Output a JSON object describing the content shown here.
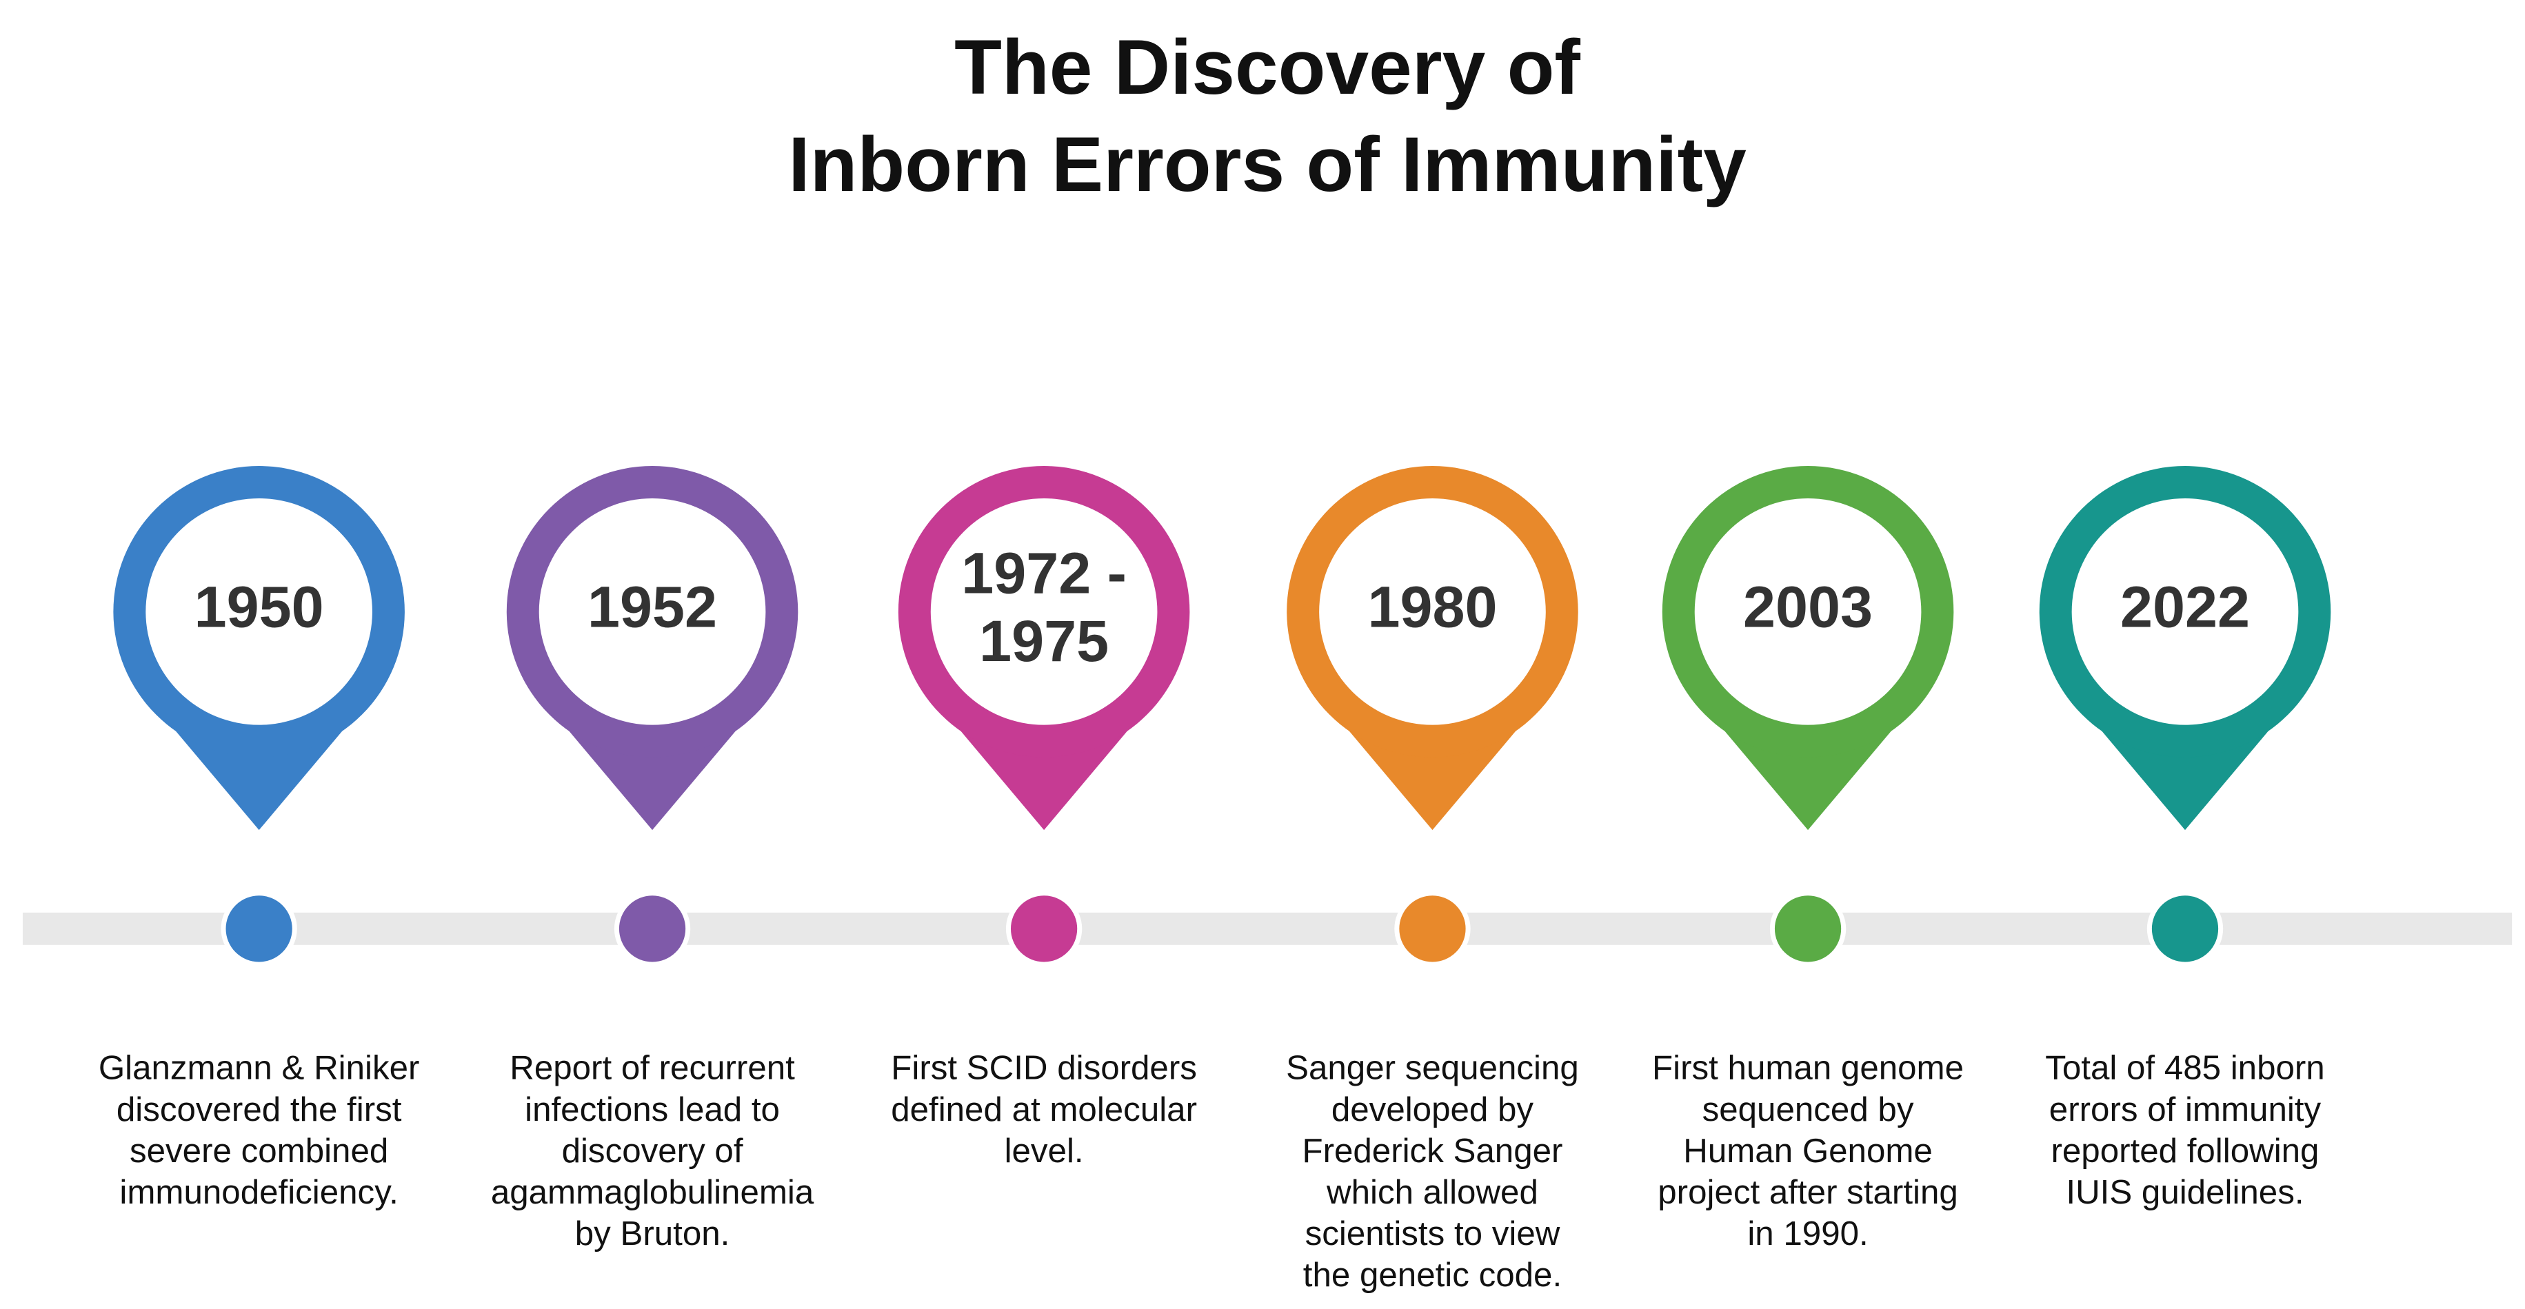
{
  "title": [
    "The Discovery of",
    "Inborn Errors of Immunity"
  ],
  "events": [
    {
      "year": [
        "1950"
      ],
      "color": "#3a80c8",
      "description": [
        "Glanzmann & Riniker",
        "discovered the first",
        "severe combined",
        "immunodeficiency."
      ]
    },
    {
      "year": [
        "1952"
      ],
      "color": "#7f5aa9",
      "description": [
        "Report of recurrent",
        "infections lead to",
        "discovery of",
        "agammaglobulinemia",
        "by Bruton."
      ]
    },
    {
      "year": [
        "1972 -",
        "1975"
      ],
      "color": "#c63b93",
      "description": [
        "First SCID disorders",
        "defined at molecular",
        "level."
      ]
    },
    {
      "year": [
        "1980"
      ],
      "color": "#e8892b",
      "description": [
        "Sanger sequencing",
        "developed by",
        "Frederick Sanger",
        "which allowed",
        "scientists to view",
        "the genetic code."
      ]
    },
    {
      "year": [
        "2003"
      ],
      "color": "#5aab45",
      "description": [
        "First human genome",
        "sequenced by",
        "Human Genome",
        "project after starting",
        "in 1990."
      ]
    },
    {
      "year": [
        "2022"
      ],
      "color": "#17968d",
      "description": [
        "Total of 485 inborn",
        "errors of immunity",
        "reported following",
        "IUIS guidelines."
      ]
    }
  ]
}
